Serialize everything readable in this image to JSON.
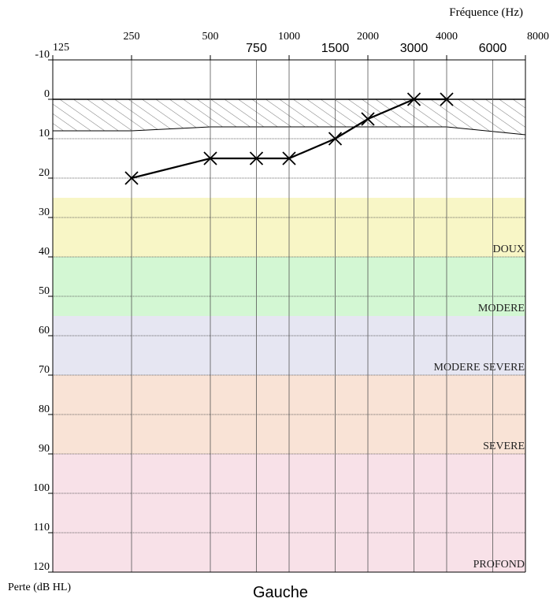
{
  "chart_data": {
    "type": "line",
    "title": "Gauche",
    "xlabel": "Fréquence (Hz)",
    "ylabel": "Perte (dB HL)",
    "ylim": [
      -10,
      120
    ],
    "y_ticks": [
      "-10",
      "0",
      "10",
      "20",
      "30",
      "40",
      "50",
      "60",
      "70",
      "80",
      "90",
      "100",
      "110",
      "120"
    ],
    "x_ticks_main": [
      "125",
      "250",
      "500",
      "1000",
      "2000",
      "4000",
      "8000"
    ],
    "x_ticks_inter": [
      "750",
      "1500",
      "3000",
      "6000"
    ],
    "series": [
      {
        "marker": "x",
        "color": "#000000",
        "x": [
          250,
          500,
          750,
          1000,
          1500,
          2000,
          3000,
          4000
        ],
        "y": [
          20,
          15,
          15,
          15,
          10,
          5,
          0,
          0
        ]
      }
    ],
    "normal_zone": {
      "top": 0,
      "bottom_x": [
        125,
        250,
        500,
        1000,
        2000,
        4000,
        8000
      ],
      "bottom_y": [
        8,
        8,
        7,
        7,
        7,
        7,
        9
      ]
    },
    "bands": [
      {
        "label": "DOUX",
        "from": 25,
        "to": 40,
        "color": "#f8f6c6"
      },
      {
        "label": "MODERE",
        "from": 40,
        "to": 55,
        "color": "#d3f7d3"
      },
      {
        "label": "MODERE SEVERE",
        "from": 55,
        "to": 70,
        "color": "#e6e6f2"
      },
      {
        "label": "SEVERE",
        "from": 70,
        "to": 90,
        "color": "#f9e3d6"
      },
      {
        "label": "PROFOND",
        "from": 90,
        "to": 120,
        "color": "#f8e1e8"
      }
    ]
  }
}
